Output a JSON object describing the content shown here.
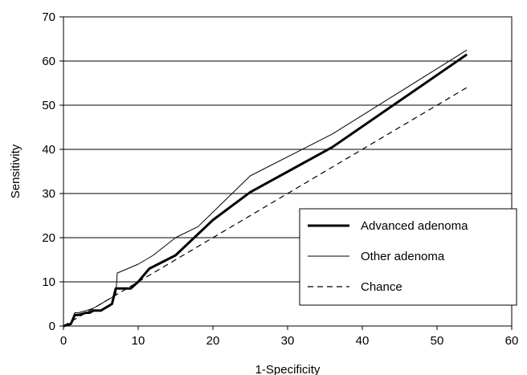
{
  "chart_data": {
    "type": "line",
    "title": "",
    "xlabel": "1-Specificity",
    "ylabel": "Sensitivity",
    "xlim": [
      0,
      60
    ],
    "ylim": [
      0,
      70
    ],
    "xticks": [
      0,
      10,
      20,
      30,
      40,
      50,
      60
    ],
    "yticks": [
      0,
      10,
      20,
      30,
      40,
      50,
      60,
      70
    ],
    "grid": "horizontal",
    "legend_position": "bottom-right",
    "series": [
      {
        "name": "Advanced adenoma",
        "style": "thick-solid",
        "color": "#000000",
        "x": [
          0,
          1,
          1.5,
          2,
          3,
          3.5,
          4,
          5,
          6,
          6.5,
          7,
          8,
          9,
          10,
          11.5,
          15,
          20,
          25,
          36,
          54
        ],
        "y": [
          0,
          0.5,
          2.5,
          2.5,
          3,
          3,
          3.5,
          3.5,
          4.5,
          5,
          8.5,
          8.5,
          8.5,
          10,
          13,
          16,
          24,
          30.3,
          40.5,
          61.5
        ]
      },
      {
        "name": "Other adenoma",
        "style": "thin-solid",
        "color": "#000000",
        "x": [
          0,
          1,
          1.5,
          2,
          3,
          4,
          5,
          6,
          7,
          7.2,
          10,
          12,
          15,
          18,
          25,
          36,
          54
        ],
        "y": [
          0,
          0.5,
          3,
          3,
          3.5,
          4,
          5,
          6,
          7,
          12,
          14,
          16,
          20,
          22.5,
          34,
          43.5,
          62.5
        ]
      },
      {
        "name": "Chance",
        "style": "dashed",
        "color": "#000000",
        "x": [
          0,
          54
        ],
        "y": [
          0,
          54
        ]
      }
    ]
  }
}
